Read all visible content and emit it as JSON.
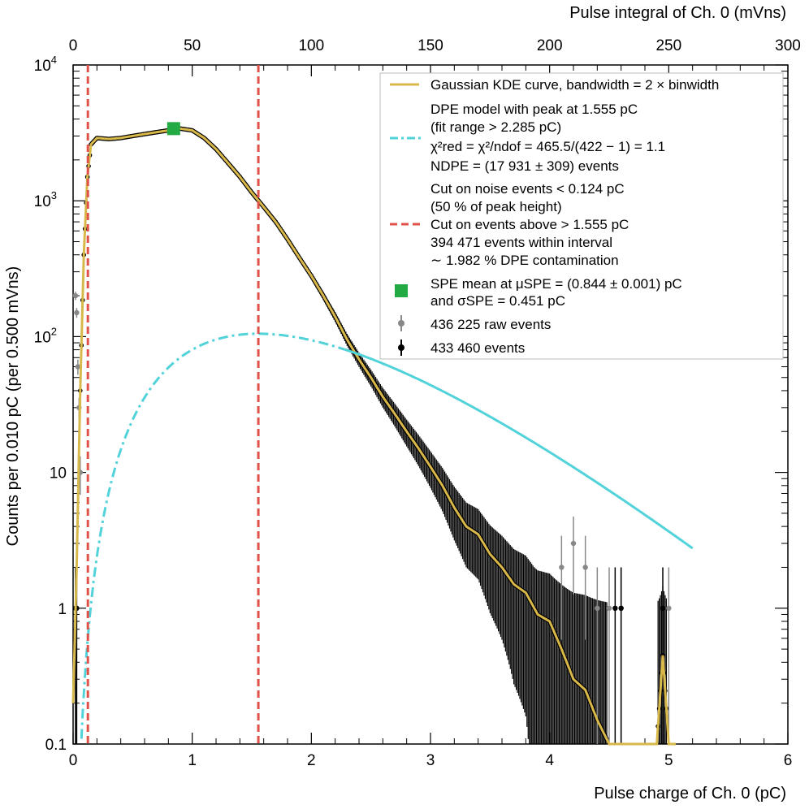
{
  "chart_data": {
    "type": "scatter",
    "y_scale": "log",
    "grid": false,
    "legend_position": "top-right",
    "xlabel": "Pulse charge of Ch. 0 (pC)",
    "x2label": "Pulse integral of Ch. 0 (mVns)",
    "ylabel": "Counts per 0.010 pC (per 0.500 mVns)",
    "xlim": [
      0,
      6
    ],
    "ylim": [
      0.1,
      10000
    ],
    "x2lim": [
      0,
      300
    ],
    "x_ticks": [
      "0",
      "1",
      "2",
      "3",
      "4",
      "5",
      "6"
    ],
    "x2_ticks": [
      "0",
      "50",
      "100",
      "150",
      "200",
      "250",
      "300"
    ],
    "y_ticks": [
      {
        "value": 0.1,
        "label": "0.1"
      },
      {
        "value": 1,
        "label": "1"
      },
      {
        "value": 10,
        "label": "10"
      },
      {
        "value": 100,
        "label": "10",
        "exp": "2"
      },
      {
        "value": 1000,
        "label": "10",
        "exp": "3"
      },
      {
        "value": 10000,
        "label": "10",
        "exp": "4"
      }
    ],
    "colors": {
      "kde": "#d9b84a",
      "dpe": "#52d2d9",
      "cut": "#e0514a",
      "spe": "#22aa44",
      "raw": "#888888",
      "events": "#000000"
    },
    "series": [
      {
        "name": "Gaussian KDE curve, bandwidth = 2 × binwidth",
        "kind": "line",
        "x": [
          0.0,
          0.03,
          0.06,
          0.09,
          0.12,
          0.15,
          0.2,
          0.3,
          0.4,
          0.5,
          0.6,
          0.7,
          0.8,
          0.9,
          1.0,
          1.1,
          1.2,
          1.3,
          1.4,
          1.5,
          1.6,
          1.7,
          1.8,
          1.9,
          2.0,
          2.1,
          2.2,
          2.3,
          2.4,
          2.5,
          2.6,
          2.7,
          2.8,
          2.9,
          3.0,
          3.1,
          3.2,
          3.3,
          3.4,
          3.5,
          3.6,
          3.7,
          3.8,
          3.9,
          4.0,
          4.1,
          4.2,
          4.3,
          4.4,
          4.5,
          4.6,
          4.7,
          4.8,
          4.9,
          4.95,
          5.0,
          5.05
        ],
        "y": [
          0.2,
          2,
          40,
          400,
          1500,
          2600,
          2900,
          2850,
          2900,
          3000,
          3100,
          3200,
          3300,
          3400,
          3300,
          2900,
          2400,
          1900,
          1500,
          1150,
          900,
          700,
          520,
          380,
          280,
          200,
          140,
          95,
          68,
          50,
          36,
          27,
          20,
          15,
          11,
          8,
          5.5,
          4,
          3.5,
          2.5,
          2,
          1.5,
          1.3,
          0.9,
          0.8,
          0.5,
          0.3,
          0.25,
          0.15,
          0.1,
          0.1,
          0.1,
          0.1,
          0.1,
          0.45,
          0.1,
          0.1
        ]
      },
      {
        "name": "DPE model with peak at 1.555 pC",
        "name_line2": "(fit range > 2.285 pC)",
        "chi2_line": "χ²red = χ²/ndof = 465.5/(422 − 1) = 1.1",
        "n_line": "NDPE = (17 931 ± 309) events",
        "kind": "curve",
        "peak_x": 1.555,
        "peak_y": 105,
        "fit_range_min": 2.285
      },
      {
        "name": "Cut on noise events < 0.124 pC",
        "name_line2": "(50 % of peak height)",
        "kind": "vline",
        "x": 0.124
      },
      {
        "name": "Cut on events above > 1.555 pC",
        "name_line2": "394 471 events within interval",
        "name_line3": "∼ 1.982 % DPE contamination",
        "kind": "vline",
        "x": 1.555
      },
      {
        "name": "SPE mean at μSPE = (0.844 ± 0.001) pC",
        "name_line2": "and σSPE = 0.451 pC",
        "kind": "marker",
        "x": 0.844,
        "y": 3400
      },
      {
        "name": "436 225 raw events",
        "kind": "points",
        "x": [
          0.02,
          0.03,
          0.04,
          0.05,
          0.06,
          4.1,
          4.2,
          4.3,
          4.4,
          4.5,
          4.6,
          5.0
        ],
        "y": [
          200,
          150,
          60,
          30,
          10,
          2,
          3,
          2,
          1,
          1,
          1,
          1
        ]
      },
      {
        "name": "433 460 events",
        "kind": "points",
        "x": [
          0.02,
          0.03,
          4.55,
          4.6,
          4.95
        ],
        "y": [
          1,
          1,
          1,
          1,
          1
        ]
      }
    ]
  }
}
